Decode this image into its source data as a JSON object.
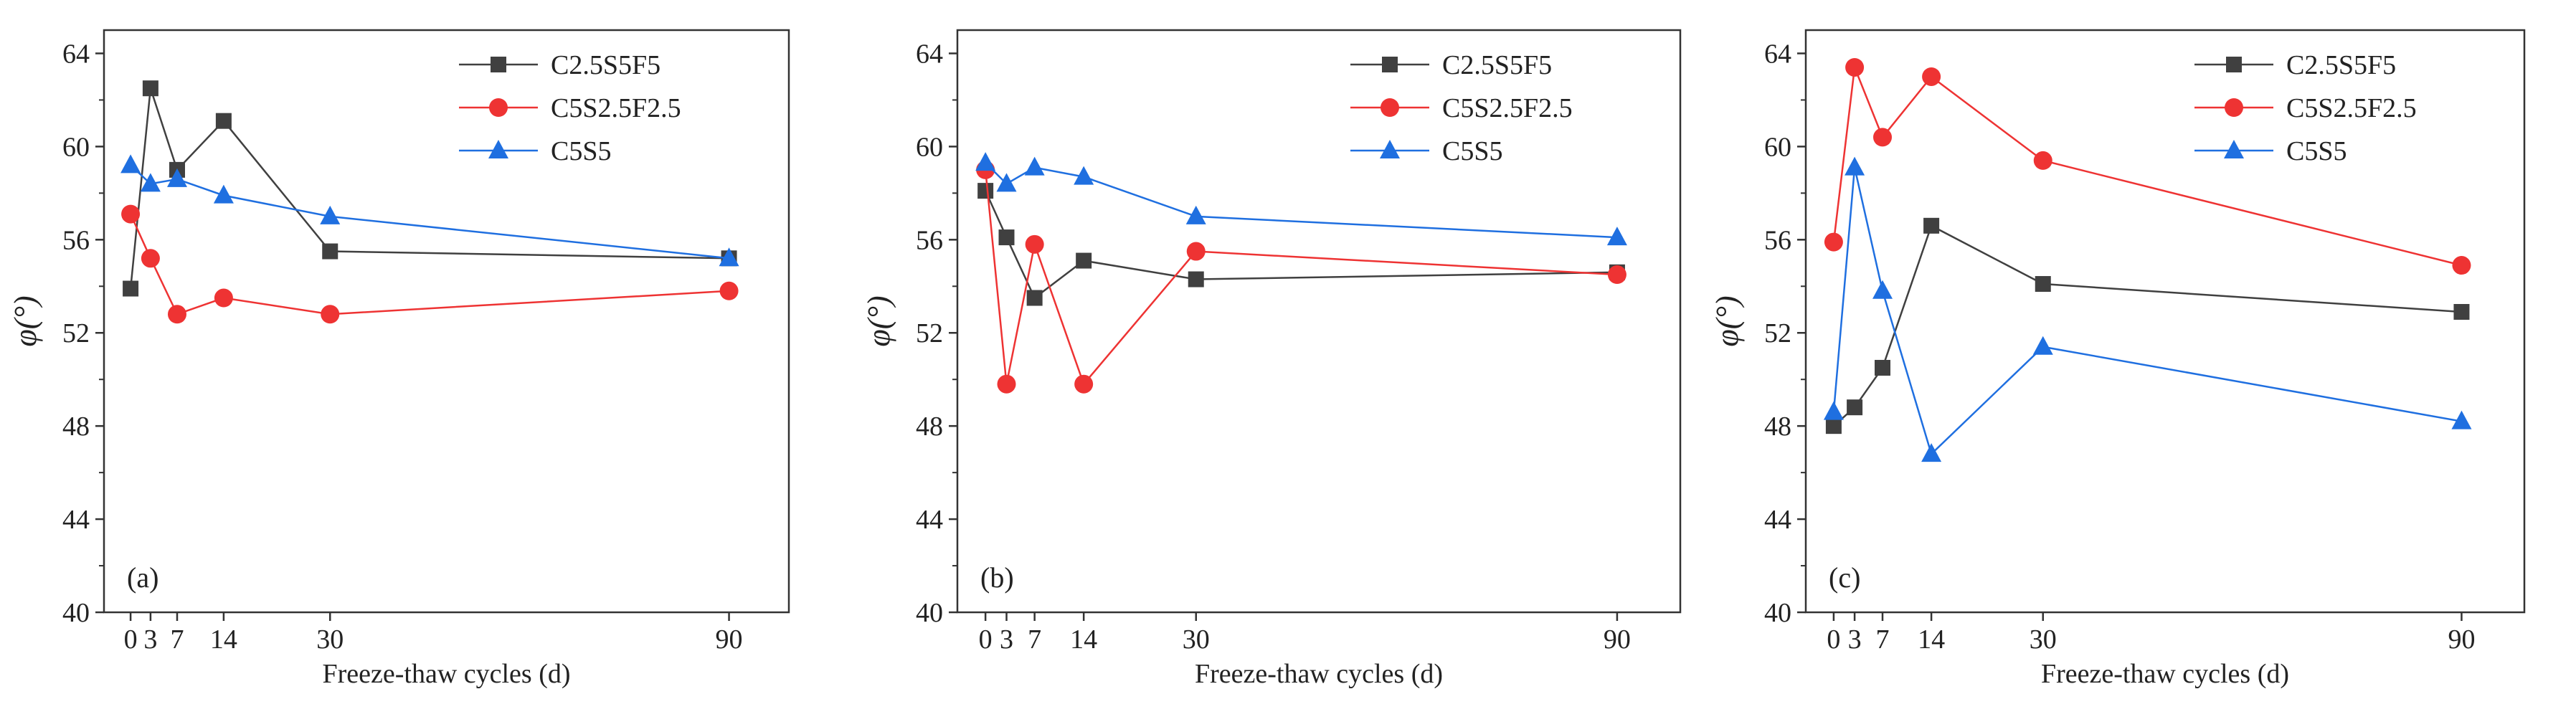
{
  "chart_data": [
    {
      "type": "line",
      "panel_label": "(a)",
      "xlabel": "Freeze-thaw cycles (d)",
      "ylabel": "φ(°)",
      "xticks": [
        0,
        3,
        7,
        14,
        30,
        90
      ],
      "yticks": [
        40,
        44,
        48,
        52,
        56,
        60,
        64
      ],
      "ylim": [
        40,
        65
      ],
      "xlim": [
        -4,
        99
      ],
      "legend_position": "top-right",
      "series": [
        {
          "name": "C2.5S5F5",
          "color": "#404040",
          "marker": "square",
          "x": [
            0,
            3,
            7,
            14,
            30,
            90
          ],
          "values": [
            53.9,
            62.5,
            59.0,
            61.1,
            55.5,
            55.2
          ]
        },
        {
          "name": "C5S2.5F2.5",
          "color": "#ee3333",
          "marker": "circle",
          "x": [
            0,
            3,
            7,
            14,
            30,
            90
          ],
          "values": [
            57.1,
            55.2,
            52.8,
            53.5,
            52.8,
            53.8
          ]
        },
        {
          "name": "C5S5",
          "color": "#1f6fe0",
          "marker": "triangle",
          "x": [
            0,
            3,
            7,
            14,
            30,
            90
          ],
          "values": [
            59.2,
            58.4,
            58.6,
            57.9,
            57.0,
            55.2
          ]
        }
      ]
    },
    {
      "type": "line",
      "panel_label": "(b)",
      "xlabel": "Freeze-thaw cycles (d)",
      "ylabel": "φ(°)",
      "xticks": [
        0,
        3,
        7,
        14,
        30,
        90
      ],
      "yticks": [
        40,
        44,
        48,
        52,
        56,
        60,
        64
      ],
      "ylim": [
        40,
        65
      ],
      "xlim": [
        -4,
        99
      ],
      "legend_position": "top-right",
      "series": [
        {
          "name": "C2.5S5F5",
          "color": "#404040",
          "marker": "square",
          "x": [
            0,
            3,
            7,
            14,
            30,
            90
          ],
          "values": [
            58.1,
            56.1,
            53.5,
            55.1,
            54.3,
            54.6
          ]
        },
        {
          "name": "C5S2.5F2.5",
          "color": "#ee3333",
          "marker": "circle",
          "x": [
            0,
            3,
            7,
            14,
            30,
            90
          ],
          "values": [
            59.0,
            49.8,
            55.8,
            49.8,
            55.5,
            54.5
          ]
        },
        {
          "name": "C5S5",
          "color": "#1f6fe0",
          "marker": "triangle",
          "x": [
            0,
            3,
            7,
            14,
            30,
            90
          ],
          "values": [
            59.3,
            58.4,
            59.1,
            58.7,
            57.0,
            56.1
          ]
        }
      ]
    },
    {
      "type": "line",
      "panel_label": "(c)",
      "xlabel": "Freeze-thaw cycles (d)",
      "ylabel": "φ(°)",
      "xticks": [
        0,
        3,
        7,
        14,
        30,
        90
      ],
      "yticks": [
        40,
        44,
        48,
        52,
        56,
        60,
        64
      ],
      "ylim": [
        40,
        65
      ],
      "xlim": [
        -4,
        99
      ],
      "legend_position": "top-right",
      "series": [
        {
          "name": "C2.5S5F5",
          "color": "#404040",
          "marker": "square",
          "x": [
            0,
            3,
            7,
            14,
            30,
            90
          ],
          "values": [
            48.0,
            48.8,
            50.5,
            56.6,
            54.1,
            52.9
          ]
        },
        {
          "name": "C5S2.5F2.5",
          "color": "#ee3333",
          "marker": "circle",
          "x": [
            0,
            3,
            7,
            14,
            30,
            90
          ],
          "values": [
            55.9,
            63.4,
            60.4,
            63.0,
            59.4,
            54.9
          ]
        },
        {
          "name": "C5S5",
          "color": "#1f6fe0",
          "marker": "triangle",
          "x": [
            0,
            3,
            7,
            14,
            30,
            90
          ],
          "values": [
            48.6,
            59.1,
            53.8,
            46.8,
            51.4,
            48.2
          ]
        }
      ]
    }
  ]
}
